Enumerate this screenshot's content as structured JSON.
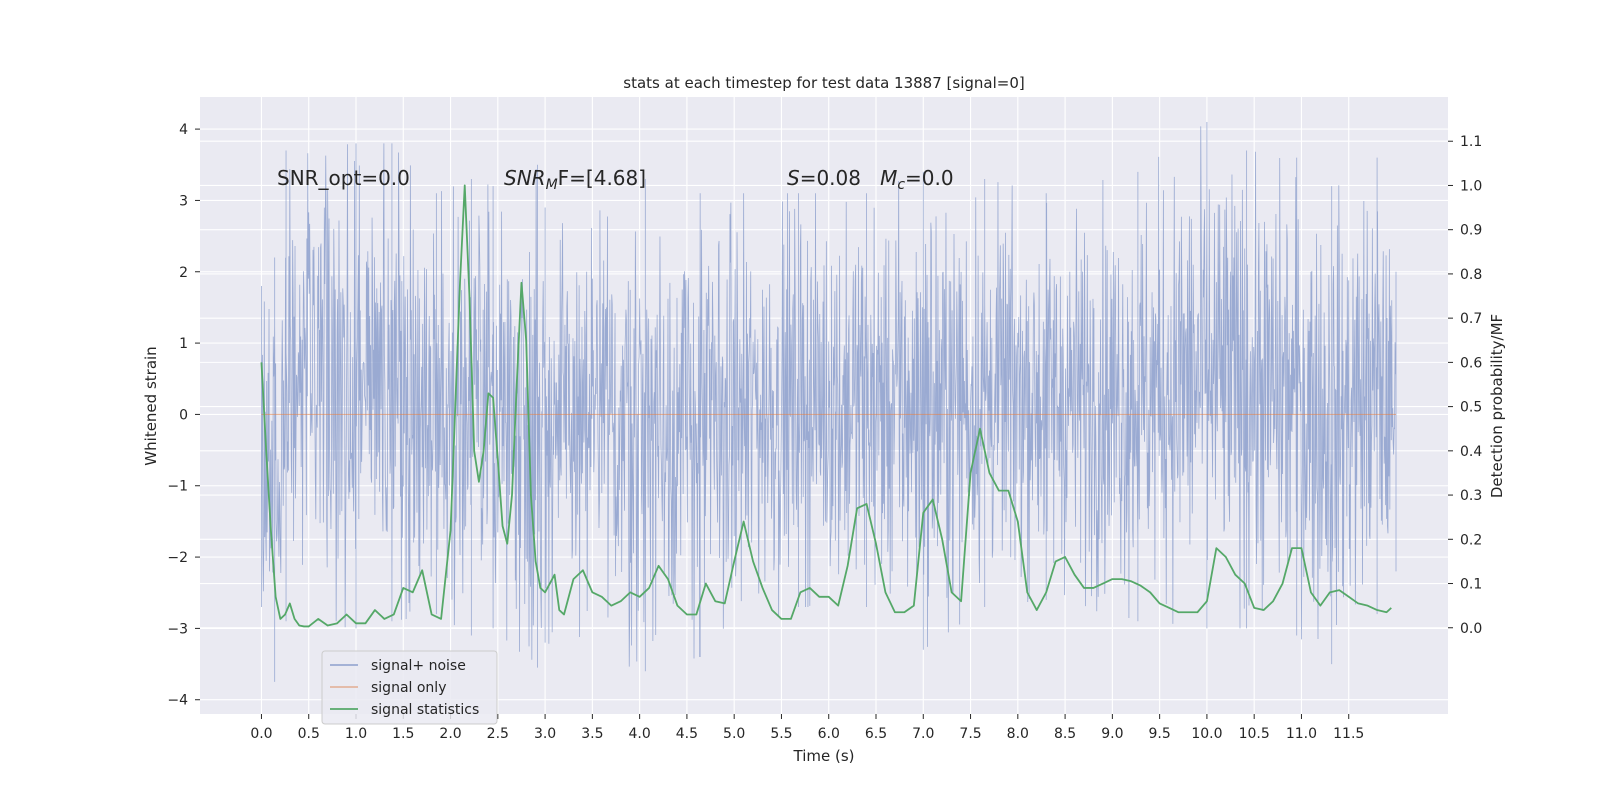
{
  "chart_data": {
    "type": "line",
    "title": "stats at each timestep for test data 13887 [signal=0]",
    "xlabel": "Time (s)",
    "ylabel_left": "Whitened strain",
    "ylabel_right": "Detection probability/MF",
    "xlim": [
      -0.65,
      12.55
    ],
    "ylim_left": [
      -4.2,
      4.45
    ],
    "ylim_right": [
      -0.195,
      1.2
    ],
    "x_ticks": [
      0.0,
      0.5,
      1.0,
      1.5,
      2.0,
      2.5,
      3.0,
      3.5,
      4.0,
      4.5,
      5.0,
      5.5,
      6.0,
      6.5,
      7.0,
      7.5,
      8.0,
      8.5,
      9.0,
      9.5,
      10.0,
      10.5,
      11.0,
      11.5
    ],
    "x_tick_labels": [
      "0.0",
      "0.5",
      "1.0",
      "1.5",
      "2.0",
      "2.5",
      "3.0",
      "3.5",
      "4.0",
      "4.5",
      "5.0",
      "5.5",
      "6.0",
      "6.5",
      "7.0",
      "7.5",
      "8.0",
      "8.5",
      "9.0",
      "9.5",
      "10.0",
      "10.5",
      "11.0",
      "11.5"
    ],
    "y_left_ticks": [
      4,
      3,
      2,
      1,
      0,
      -1,
      -2,
      -3,
      -4
    ],
    "y_left_tick_labels": [
      "4",
      "3",
      "2",
      "1",
      "0",
      "−1",
      "−2",
      "−3",
      "−4"
    ],
    "y_right_ticks": [
      1.1,
      1.0,
      0.9,
      0.8,
      0.7,
      0.6,
      0.5,
      0.4,
      0.3,
      0.2,
      0.1,
      0.0
    ],
    "y_right_tick_labels": [
      "1.1",
      "1.0",
      "0.9",
      "0.8",
      "0.7",
      "0.6",
      "0.5",
      "0.4",
      "0.3",
      "0.2",
      "0.1",
      "0.0"
    ],
    "grid": true,
    "legend_position": "lower-left",
    "annotations": [
      {
        "text": "SNR_opt=0.0"
      },
      {
        "text": "SNR_MF=[4.68]"
      },
      {
        "text": "S=0.08   M_c=0.0"
      }
    ],
    "series": [
      {
        "name": "signal+ noise",
        "axis": "left",
        "color": "#8c9fcc",
        "x_range": [
          0.0,
          12.0
        ],
        "envelope_x": [
          0.0,
          0.14,
          0.26,
          1.0,
          1.38,
          1.85,
          2.22,
          2.45,
          2.92,
          3.0,
          4.06,
          4.64,
          5.68,
          6.4,
          7.0,
          7.65,
          8.3,
          9.27,
          10.0,
          10.42,
          10.95,
          11.32,
          11.8,
          12.0
        ],
        "envelope_upper": [
          1.8,
          2.2,
          3.7,
          3.8,
          3.8,
          3.1,
          3.3,
          3.2,
          3.5,
          2.9,
          3.3,
          3.1,
          3.1,
          3.1,
          3.4,
          3.3,
          3.1,
          3.4,
          4.1,
          3.7,
          3.6,
          3.2,
          3.6,
          2.0
        ],
        "envelope_lower": [
          -2.7,
          -3.75,
          -2.9,
          -3.0,
          -2.9,
          -2.8,
          -3.1,
          -3.0,
          -3.55,
          -3.2,
          -3.6,
          -3.4,
          -2.7,
          -2.7,
          -3.3,
          -2.7,
          -2.6,
          -2.9,
          -3.0,
          -3.0,
          -3.1,
          -3.5,
          -2.8,
          -2.2
        ]
      },
      {
        "name": "signal only",
        "axis": "left",
        "color": "#dd8452",
        "x": [
          0.0,
          12.0
        ],
        "y": [
          0.0,
          0.0
        ]
      },
      {
        "name": "signal statistics",
        "axis": "right",
        "color": "#55a868",
        "x": [
          0.0,
          0.05,
          0.1,
          0.15,
          0.2,
          0.25,
          0.3,
          0.35,
          0.4,
          0.45,
          0.5,
          0.6,
          0.7,
          0.8,
          0.9,
          1.0,
          1.1,
          1.2,
          1.3,
          1.4,
          1.5,
          1.6,
          1.7,
          1.8,
          1.9,
          2.0,
          2.05,
          2.1,
          2.15,
          2.2,
          2.25,
          2.3,
          2.35,
          2.4,
          2.45,
          2.5,
          2.55,
          2.6,
          2.65,
          2.7,
          2.75,
          2.8,
          2.85,
          2.9,
          2.95,
          3.0,
          3.05,
          3.1,
          3.15,
          3.2,
          3.3,
          3.4,
          3.5,
          3.6,
          3.7,
          3.8,
          3.9,
          4.0,
          4.1,
          4.2,
          4.3,
          4.4,
          4.5,
          4.6,
          4.7,
          4.8,
          4.9,
          5.0,
          5.1,
          5.2,
          5.3,
          5.4,
          5.5,
          5.6,
          5.7,
          5.8,
          5.9,
          6.0,
          6.1,
          6.2,
          6.3,
          6.4,
          6.5,
          6.6,
          6.7,
          6.8,
          6.9,
          7.0,
          7.1,
          7.2,
          7.3,
          7.4,
          7.5,
          7.6,
          7.7,
          7.8,
          7.9,
          8.0,
          8.1,
          8.2,
          8.3,
          8.4,
          8.5,
          8.6,
          8.7,
          8.8,
          8.9,
          9.0,
          9.1,
          9.2,
          9.3,
          9.4,
          9.5,
          9.6,
          9.7,
          9.8,
          9.9,
          10.0,
          10.1,
          10.2,
          10.3,
          10.4,
          10.5,
          10.6,
          10.7,
          10.8,
          10.9,
          11.0,
          11.1,
          11.2,
          11.3,
          11.4,
          11.5,
          11.6,
          11.7,
          11.8,
          11.9,
          11.95
        ],
        "y": [
          0.6,
          0.4,
          0.22,
          0.07,
          0.02,
          0.03,
          0.055,
          0.02,
          0.005,
          0.003,
          0.003,
          0.02,
          0.005,
          0.01,
          0.03,
          0.01,
          0.01,
          0.04,
          0.02,
          0.03,
          0.09,
          0.08,
          0.13,
          0.03,
          0.02,
          0.22,
          0.5,
          0.78,
          1.0,
          0.75,
          0.4,
          0.33,
          0.4,
          0.53,
          0.52,
          0.38,
          0.23,
          0.19,
          0.3,
          0.55,
          0.78,
          0.65,
          0.3,
          0.15,
          0.09,
          0.08,
          0.1,
          0.12,
          0.04,
          0.03,
          0.11,
          0.13,
          0.08,
          0.07,
          0.05,
          0.06,
          0.08,
          0.07,
          0.09,
          0.14,
          0.11,
          0.05,
          0.03,
          0.03,
          0.1,
          0.06,
          0.055,
          0.15,
          0.24,
          0.15,
          0.09,
          0.04,
          0.02,
          0.02,
          0.08,
          0.09,
          0.07,
          0.07,
          0.05,
          0.14,
          0.27,
          0.28,
          0.19,
          0.08,
          0.035,
          0.035,
          0.05,
          0.26,
          0.29,
          0.2,
          0.08,
          0.06,
          0.35,
          0.45,
          0.35,
          0.31,
          0.31,
          0.24,
          0.08,
          0.04,
          0.08,
          0.15,
          0.16,
          0.12,
          0.09,
          0.09,
          0.1,
          0.11,
          0.11,
          0.105,
          0.095,
          0.08,
          0.055,
          0.045,
          0.035,
          0.035,
          0.035,
          0.06,
          0.18,
          0.16,
          0.12,
          0.1,
          0.045,
          0.04,
          0.06,
          0.1,
          0.18,
          0.18,
          0.08,
          0.05,
          0.08,
          0.085,
          0.07,
          0.055,
          0.05,
          0.04,
          0.035,
          0.045
        ]
      }
    ]
  }
}
